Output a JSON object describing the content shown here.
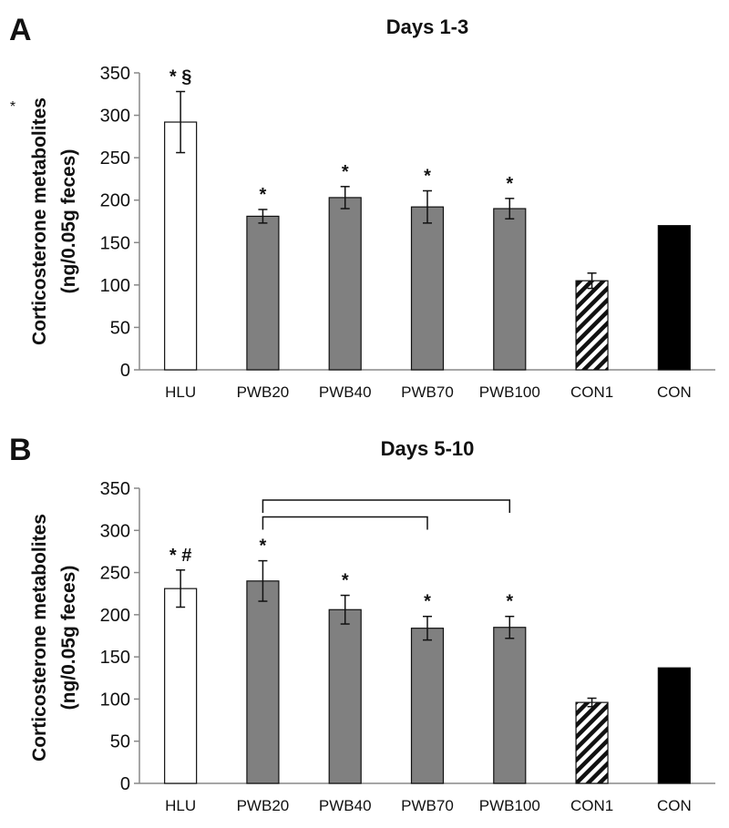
{
  "chart_data": [
    {
      "panel": "A",
      "type": "bar",
      "title": "Days 1-3",
      "ylabel_line1": "Corticosterone metabolites",
      "ylabel_line2": "(ng/0.05g feces)",
      "ylim": [
        0,
        350
      ],
      "yticks": [
        0,
        50,
        100,
        150,
        200,
        250,
        300,
        350
      ],
      "categories": [
        "HLU",
        "PWB20",
        "PWB40",
        "PWB70",
        "PWB100",
        "CON1",
        "CON"
      ],
      "values": [
        292,
        181,
        203,
        192,
        190,
        105,
        170
      ],
      "errors": [
        36,
        8,
        13,
        19,
        12,
        9,
        0
      ],
      "fills": [
        "white",
        "gray",
        "gray",
        "gray",
        "gray",
        "hatch",
        "black"
      ],
      "annotations": [
        "* §",
        "*",
        "*",
        "*",
        "*",
        "",
        ""
      ],
      "side_mark": "*",
      "brackets": []
    },
    {
      "panel": "B",
      "type": "bar",
      "title": "Days 5-10",
      "ylabel_line1": "Corticosterone metabolites",
      "ylabel_line2": "(ng/0.05g feces)",
      "ylim": [
        0,
        350
      ],
      "yticks": [
        0,
        50,
        100,
        150,
        200,
        250,
        300,
        350
      ],
      "categories": [
        "HLU",
        "PWB20",
        "PWB40",
        "PWB70",
        "PWB100",
        "CON1",
        "CON"
      ],
      "values": [
        231,
        240,
        206,
        184,
        185,
        96,
        137
      ],
      "errors": [
        22,
        24,
        17,
        14,
        13,
        5,
        0
      ],
      "fills": [
        "white",
        "gray",
        "gray",
        "gray",
        "gray",
        "hatch",
        "black"
      ],
      "annotations": [
        "* #",
        "*",
        "*",
        "*",
        "*",
        "",
        ""
      ],
      "side_mark": "",
      "brackets": [
        {
          "from": 1,
          "to": 3,
          "y": 316
        },
        {
          "from": 1,
          "to": 4,
          "y": 336
        }
      ]
    }
  ]
}
